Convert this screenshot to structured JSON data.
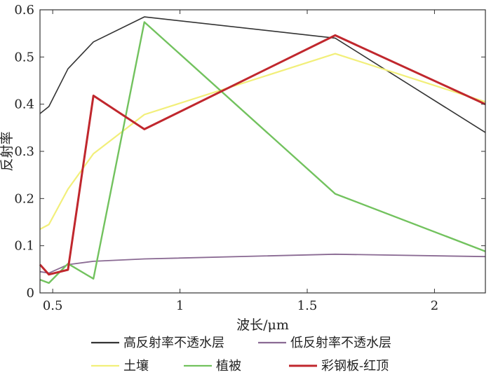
{
  "chart_data": {
    "type": "line",
    "title": "",
    "xlabel": "波长/μm",
    "ylabel": "反射率",
    "xlim": [
      0.45,
      2.2
    ],
    "ylim": [
      0,
      0.6
    ],
    "xticks": [
      0.5,
      1,
      1.5,
      2
    ],
    "xtick_labels": [
      "0.5",
      "1",
      "1.5",
      "2"
    ],
    "yticks": [
      0,
      0.1,
      0.2,
      0.3,
      0.4,
      0.5,
      0.6
    ],
    "ytick_labels": [
      "0",
      "0.1",
      "0.2",
      "0.3",
      "0.4",
      "0.5",
      "0.6"
    ],
    "grid": false,
    "legend_position": "bottom",
    "series": [
      {
        "name": "高反射率不透水层",
        "color": "#333333",
        "x": [
          0.45,
          0.485,
          0.56,
          0.66,
          0.86,
          1.61,
          2.2
        ],
        "y": [
          0.38,
          0.395,
          0.475,
          0.532,
          0.585,
          0.54,
          0.34
        ]
      },
      {
        "name": "低反射率不透水层",
        "color": "#8a6a93",
        "x": [
          0.45,
          0.485,
          0.56,
          0.66,
          0.86,
          1.61,
          2.2
        ],
        "y": [
          0.045,
          0.042,
          0.06,
          0.067,
          0.072,
          0.082,
          0.077
        ]
      },
      {
        "name": "土壤",
        "color": "#f2ef7a",
        "x": [
          0.45,
          0.485,
          0.56,
          0.66,
          0.86,
          1.61,
          2.2
        ],
        "y": [
          0.135,
          0.145,
          0.22,
          0.295,
          0.378,
          0.507,
          0.405
        ]
      },
      {
        "name": "植被",
        "color": "#72c25e",
        "x": [
          0.45,
          0.485,
          0.56,
          0.66,
          0.86,
          1.61,
          2.2
        ],
        "y": [
          0.028,
          0.021,
          0.062,
          0.03,
          0.574,
          0.21,
          0.088
        ]
      },
      {
        "name": "彩钢板-红顶",
        "color": "#c0272d",
        "x": [
          0.45,
          0.485,
          0.56,
          0.66,
          0.86,
          1.61,
          2.2
        ],
        "y": [
          0.06,
          0.039,
          0.049,
          0.418,
          0.347,
          0.546,
          0.4
        ]
      }
    ]
  }
}
